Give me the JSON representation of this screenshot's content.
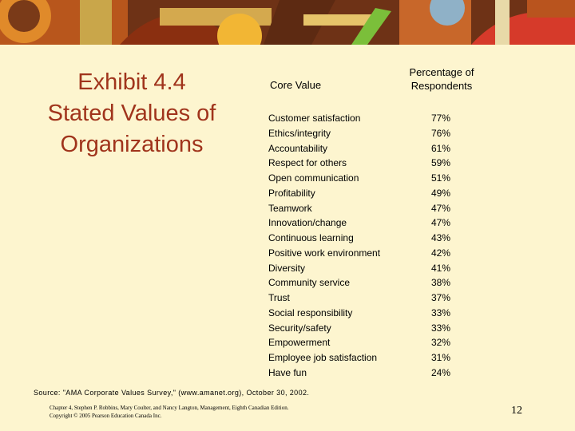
{
  "title": {
    "line1": "Exhibit 4.4",
    "line2": "Stated Values of",
    "line3": "Organizations"
  },
  "table": {
    "col_core": "Core Value",
    "col_pct_line1": "Percentage of",
    "col_pct_line2": "Respondents",
    "rows": [
      {
        "value": "Customer satisfaction",
        "pct": "77%"
      },
      {
        "value": "Ethics/integrity",
        "pct": "76%"
      },
      {
        "value": "Accountability",
        "pct": "61%"
      },
      {
        "value": "Respect for others",
        "pct": "59%"
      },
      {
        "value": "Open communication",
        "pct": "51%"
      },
      {
        "value": "Profitability",
        "pct": "49%"
      },
      {
        "value": "Teamwork",
        "pct": "47%"
      },
      {
        "value": "Innovation/change",
        "pct": "47%"
      },
      {
        "value": "Continuous learning",
        "pct": "43%"
      },
      {
        "value": "Positive work environment",
        "pct": "42%"
      },
      {
        "value": "Diversity",
        "pct": "41%"
      },
      {
        "value": "Community service",
        "pct": "38%"
      },
      {
        "value": "Trust",
        "pct": "37%"
      },
      {
        "value": "Social responsibility",
        "pct": "33%"
      },
      {
        "value": "Security/safety",
        "pct": "33%"
      },
      {
        "value": "Empowerment",
        "pct": "32%"
      },
      {
        "value": "Employee job satisfaction",
        "pct": "31%"
      },
      {
        "value": "Have fun",
        "pct": "24%"
      }
    ]
  },
  "source": "Source: \"AMA Corporate Values Survey,\" (www.amanet.org), October 30, 2002.",
  "citation": {
    "line1": "Chapter 4, Stephen P. Robbins, Mary Coulter, and Nancy Langton, Management, Eighth Canadian Edition.",
    "line2": "Copyright © 2005 Pearson Education Canada Inc."
  },
  "page_number": "12",
  "colors": {
    "background": "#fdf5cf",
    "title": "#a0341c",
    "banner": "#7a3a18"
  }
}
